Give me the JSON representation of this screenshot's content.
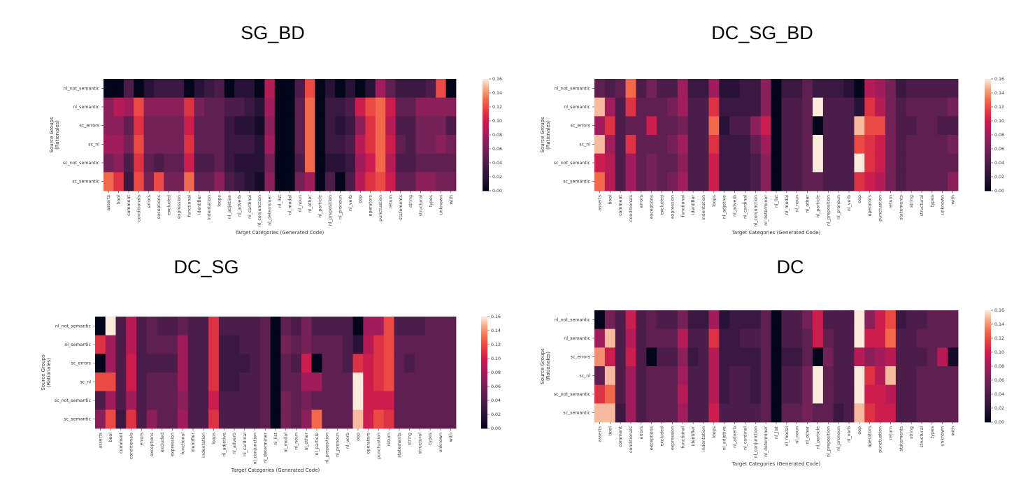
{
  "chart_data": [
    {
      "type": "heatmap",
      "title": "SG_BD",
      "xlabel": "Target Categories (Generated Code)",
      "ylabel": "Source Groups (Rationales)",
      "colorbar_range": [
        0,
        0.16
      ],
      "colorbar_ticks": [
        "0.00",
        "0.02",
        "0.04",
        "0.06",
        "0.08",
        "0.10",
        "0.12",
        "0.14",
        "0.16"
      ],
      "rows": [
        "nl_not_semantic",
        "nl_semantic",
        "sc_errors",
        "sc_nl",
        "sc_not_semantic",
        "sc_semantic"
      ],
      "columns": [
        "asserts",
        "bool",
        "comment",
        "conditionals",
        "errors",
        "exceptions",
        "excluded",
        "expression",
        "functional",
        "identifier",
        "indentation",
        "loops",
        "nl_adjetive",
        "nl_adverb",
        "nl_cardinal",
        "nl_conjunction",
        "nl_determiner",
        "nl_list",
        "nl_modal",
        "nl_noun",
        "nl_other",
        "nl_particle",
        "nl_preposition",
        "nl_pronoun",
        "nl_verb",
        "oop",
        "operators",
        "punctuation",
        "return",
        "statements",
        "string",
        "structural",
        "types",
        "unknown",
        "with"
      ],
      "values": [
        [
          0.0,
          0.0,
          0.04,
          0.0,
          0.02,
          0.03,
          0.03,
          0.03,
          0.0,
          0.02,
          0.03,
          0.04,
          0.0,
          0.02,
          0.02,
          0.0,
          0.09,
          0.0,
          0.0,
          0.04,
          0.12,
          0.0,
          0.02,
          0.0,
          0.02,
          0.0,
          0.02,
          0.08,
          0.05,
          0.03,
          0.03,
          0.03,
          0.04,
          0.12,
          0.0
        ],
        [
          0.07,
          0.09,
          0.08,
          0.12,
          0.07,
          0.07,
          0.07,
          0.07,
          0.11,
          0.06,
          0.05,
          0.05,
          0.04,
          0.04,
          0.03,
          0.02,
          0.08,
          0.0,
          0.0,
          0.05,
          0.13,
          0.0,
          0.03,
          0.03,
          0.04,
          0.1,
          0.12,
          0.13,
          0.1,
          0.05,
          0.05,
          0.07,
          0.07,
          0.07,
          0.07
        ],
        [
          0.07,
          0.07,
          0.05,
          0.11,
          0.06,
          0.06,
          0.06,
          0.06,
          0.1,
          0.05,
          0.05,
          0.05,
          0.03,
          0.02,
          0.02,
          0.01,
          0.07,
          0.0,
          0.0,
          0.05,
          0.13,
          0.0,
          0.03,
          0.02,
          0.03,
          0.07,
          0.11,
          0.13,
          0.09,
          0.04,
          0.04,
          0.06,
          0.06,
          0.06,
          0.04
        ],
        [
          0.08,
          0.08,
          0.06,
          0.12,
          0.06,
          0.06,
          0.06,
          0.06,
          0.11,
          0.05,
          0.05,
          0.05,
          0.03,
          0.03,
          0.03,
          0.02,
          0.08,
          0.0,
          0.0,
          0.05,
          0.13,
          0.0,
          0.03,
          0.03,
          0.04,
          0.09,
          0.11,
          0.13,
          0.1,
          0.05,
          0.04,
          0.06,
          0.06,
          0.07,
          0.06
        ],
        [
          0.06,
          0.07,
          0.04,
          0.11,
          0.05,
          0.04,
          0.05,
          0.05,
          0.1,
          0.04,
          0.04,
          0.05,
          0.03,
          0.02,
          0.02,
          0.02,
          0.06,
          0.0,
          0.0,
          0.04,
          0.13,
          0.0,
          0.02,
          0.02,
          0.03,
          0.08,
          0.1,
          0.13,
          0.09,
          0.04,
          0.04,
          0.05,
          0.05,
          0.05,
          0.05
        ],
        [
          0.13,
          0.11,
          0.03,
          0.12,
          0.06,
          0.12,
          0.06,
          0.06,
          0.13,
          0.05,
          0.05,
          0.07,
          0.04,
          0.03,
          0.02,
          0.01,
          0.07,
          0.0,
          0.0,
          0.06,
          0.08,
          0.0,
          0.04,
          0.0,
          0.04,
          0.09,
          0.11,
          0.12,
          0.1,
          0.05,
          0.05,
          0.07,
          0.07,
          0.06,
          0.06
        ]
      ]
    },
    {
      "type": "heatmap",
      "title": "DC_SG_BD",
      "xlabel": "Target Categories (Generated Code)",
      "ylabel": "Source Groups (Rationales)",
      "colorbar_range": [
        0,
        0.16
      ],
      "colorbar_ticks": [
        "0.00",
        "0.02",
        "0.04",
        "0.06",
        "0.08",
        "0.10",
        "0.12",
        "0.14",
        "0.16"
      ],
      "rows": [
        "nl_not_semantic",
        "nl_semantic",
        "sc_errors",
        "sc_nl",
        "sc_not_semantic",
        "sc_semantic"
      ],
      "columns": [
        "asserts",
        "bool",
        "comment",
        "conditionals",
        "errors",
        "exceptions",
        "excluded",
        "expression",
        "functional",
        "identifier",
        "indentation",
        "loops",
        "nl_adjetive",
        "nl_adverb",
        "nl_cardinal",
        "nl_conjunction",
        "nl_determiner",
        "nl_list",
        "nl_modal",
        "nl_noun",
        "nl_other",
        "nl_particle",
        "nl_preposition",
        "nl_pronoun",
        "nl_verb",
        "oop",
        "operators",
        "punctuation",
        "return",
        "statements",
        "string",
        "structural",
        "types",
        "unknown",
        "with"
      ],
      "values": [
        [
          0.05,
          0.04,
          0.05,
          0.13,
          0.04,
          0.06,
          0.04,
          0.04,
          0.08,
          0.03,
          0.03,
          0.08,
          0.02,
          0.02,
          0.03,
          0.03,
          0.07,
          0.0,
          0.03,
          0.03,
          0.05,
          0.03,
          0.03,
          0.03,
          0.02,
          0.0,
          0.09,
          0.08,
          0.06,
          0.03,
          0.04,
          0.04,
          0.04,
          0.04,
          0.04
        ],
        [
          0.15,
          0.08,
          0.04,
          0.11,
          0.05,
          0.05,
          0.05,
          0.06,
          0.08,
          0.04,
          0.04,
          0.11,
          0.03,
          0.03,
          0.03,
          0.03,
          0.07,
          0.0,
          0.04,
          0.04,
          0.05,
          0.16,
          0.04,
          0.04,
          0.04,
          0.02,
          0.11,
          0.09,
          0.06,
          0.04,
          0.05,
          0.05,
          0.05,
          0.05,
          0.06
        ],
        [
          0.08,
          0.11,
          0.04,
          0.05,
          0.05,
          0.1,
          0.05,
          0.05,
          0.06,
          0.04,
          0.04,
          0.13,
          0.02,
          0.04,
          0.04,
          0.07,
          0.1,
          0.0,
          0.04,
          0.04,
          0.05,
          0.0,
          0.04,
          0.04,
          0.04,
          0.15,
          0.12,
          0.12,
          0.06,
          0.04,
          0.04,
          0.05,
          0.05,
          0.04,
          0.04
        ],
        [
          0.15,
          0.08,
          0.04,
          0.11,
          0.05,
          0.05,
          0.05,
          0.06,
          0.08,
          0.04,
          0.04,
          0.11,
          0.03,
          0.03,
          0.03,
          0.05,
          0.08,
          0.0,
          0.04,
          0.04,
          0.05,
          0.16,
          0.04,
          0.04,
          0.04,
          0.12,
          0.11,
          0.1,
          0.06,
          0.04,
          0.05,
          0.05,
          0.05,
          0.05,
          0.06
        ],
        [
          0.1,
          0.09,
          0.04,
          0.08,
          0.05,
          0.06,
          0.05,
          0.05,
          0.07,
          0.04,
          0.04,
          0.1,
          0.03,
          0.03,
          0.03,
          0.04,
          0.07,
          0.0,
          0.04,
          0.04,
          0.05,
          0.16,
          0.04,
          0.04,
          0.04,
          0.16,
          0.11,
          0.1,
          0.06,
          0.04,
          0.05,
          0.05,
          0.05,
          0.05,
          0.05
        ],
        [
          0.13,
          0.09,
          0.04,
          0.08,
          0.05,
          0.06,
          0.05,
          0.06,
          0.08,
          0.04,
          0.04,
          0.1,
          0.03,
          0.03,
          0.03,
          0.04,
          0.07,
          0.0,
          0.04,
          0.04,
          0.05,
          0.05,
          0.04,
          0.04,
          0.04,
          0.11,
          0.1,
          0.09,
          0.06,
          0.04,
          0.05,
          0.05,
          0.05,
          0.05,
          0.07
        ]
      ]
    },
    {
      "type": "heatmap",
      "title": "DC_SG",
      "xlabel": "Target Categories (Generated Code)",
      "ylabel": "Source Groups (Rationales)",
      "colorbar_range": [
        0,
        0.16
      ],
      "colorbar_ticks": [
        "0.00",
        "0.02",
        "0.04",
        "0.06",
        "0.08",
        "0.10",
        "0.12",
        "0.14",
        "0.16"
      ],
      "rows": [
        "nl_not_semantic",
        "nl_semantic",
        "sc_errors",
        "sc_nl",
        "sc_not_semantic",
        "sc_semantic"
      ],
      "columns": [
        "asserts",
        "bool",
        "comment",
        "conditionals",
        "errors",
        "exceptions",
        "excluded",
        "expression",
        "functional",
        "identifier",
        "indentation",
        "loops",
        "nl_adjetive",
        "nl_adverb",
        "nl_cardinal",
        "nl_conjunction",
        "nl_determiner",
        "nl_list",
        "nl_modal",
        "nl_noun",
        "nl_other",
        "nl_particle",
        "nl_preposition",
        "nl_pronoun",
        "nl_verb",
        "oop",
        "operators",
        "punctuation",
        "return",
        "statements",
        "string",
        "structural",
        "types",
        "unknown",
        "with"
      ],
      "values": [
        [
          0.0,
          0.16,
          0.04,
          0.09,
          0.04,
          0.05,
          0.04,
          0.04,
          0.05,
          0.04,
          0.04,
          0.11,
          0.04,
          0.04,
          0.04,
          0.04,
          0.05,
          0.0,
          0.05,
          0.04,
          0.06,
          0.04,
          0.04,
          0.04,
          0.04,
          0.0,
          0.08,
          0.08,
          0.12,
          0.04,
          0.04,
          0.04,
          0.05,
          0.05,
          0.05
        ],
        [
          0.11,
          0.08,
          0.04,
          0.09,
          0.04,
          0.05,
          0.05,
          0.05,
          0.08,
          0.04,
          0.04,
          0.11,
          0.03,
          0.03,
          0.04,
          0.04,
          0.05,
          0.0,
          0.06,
          0.05,
          0.06,
          0.05,
          0.05,
          0.05,
          0.04,
          0.02,
          0.09,
          0.11,
          0.12,
          0.05,
          0.05,
          0.05,
          0.05,
          0.05,
          0.05
        ],
        [
          0.0,
          0.08,
          0.04,
          0.1,
          0.04,
          0.04,
          0.04,
          0.04,
          0.08,
          0.04,
          0.04,
          0.11,
          0.03,
          0.03,
          0.03,
          0.04,
          0.05,
          0.0,
          0.05,
          0.04,
          0.1,
          0.0,
          0.05,
          0.05,
          0.04,
          0.11,
          0.1,
          0.11,
          0.12,
          0.05,
          0.04,
          0.05,
          0.05,
          0.05,
          0.05
        ],
        [
          0.12,
          0.12,
          0.04,
          0.1,
          0.04,
          0.05,
          0.05,
          0.05,
          0.08,
          0.04,
          0.04,
          0.11,
          0.03,
          0.03,
          0.04,
          0.04,
          0.05,
          0.0,
          0.05,
          0.05,
          0.08,
          0.08,
          0.05,
          0.05,
          0.05,
          0.16,
          0.1,
          0.11,
          0.12,
          0.05,
          0.05,
          0.05,
          0.05,
          0.05,
          0.05
        ],
        [
          0.04,
          0.08,
          0.04,
          0.08,
          0.04,
          0.05,
          0.05,
          0.05,
          0.07,
          0.04,
          0.04,
          0.1,
          0.04,
          0.04,
          0.04,
          0.04,
          0.05,
          0.0,
          0.06,
          0.05,
          0.06,
          0.05,
          0.05,
          0.05,
          0.05,
          0.16,
          0.1,
          0.1,
          0.1,
          0.05,
          0.05,
          0.05,
          0.05,
          0.05,
          0.05
        ],
        [
          0.07,
          0.12,
          0.03,
          0.11,
          0.04,
          0.07,
          0.05,
          0.05,
          0.08,
          0.04,
          0.04,
          0.11,
          0.04,
          0.04,
          0.04,
          0.04,
          0.05,
          0.0,
          0.06,
          0.05,
          0.07,
          0.13,
          0.05,
          0.05,
          0.05,
          0.15,
          0.1,
          0.12,
          0.11,
          0.05,
          0.05,
          0.05,
          0.05,
          0.05,
          0.05
        ]
      ]
    },
    {
      "type": "heatmap",
      "title": "DC",
      "xlabel": "Target Categories (Generated Code)",
      "ylabel": "Source Groups (Rationales)",
      "colorbar_range": [
        0,
        0.16
      ],
      "colorbar_ticks": [
        "0.00",
        "0.02",
        "0.04",
        "0.06",
        "0.08",
        "0.10",
        "0.12",
        "0.14",
        "0.16"
      ],
      "rows": [
        "nl_not_semantic",
        "nl_semantic",
        "sc_errors",
        "sc_nl",
        "sc_not_semantic",
        "sc_semantic"
      ],
      "columns": [
        "asserts",
        "bool",
        "comment",
        "conditionals",
        "errors",
        "exceptions",
        "excluded",
        "expression",
        "functional",
        "identifier",
        "indentation",
        "loops",
        "nl_adjetive",
        "nl_adverb",
        "nl_cardinal",
        "nl_conjunction",
        "nl_determiner",
        "nl_list",
        "nl_modal",
        "nl_noun",
        "nl_other",
        "nl_particle",
        "nl_preposition",
        "nl_pronoun",
        "nl_verb",
        "oop",
        "operators",
        "punctuation",
        "return",
        "statements",
        "string",
        "structural",
        "types",
        "unknown",
        "with"
      ],
      "values": [
        [
          0.0,
          0.06,
          0.04,
          0.1,
          0.04,
          0.05,
          0.04,
          0.04,
          0.06,
          0.03,
          0.03,
          0.08,
          0.02,
          0.03,
          0.03,
          0.03,
          0.05,
          0.0,
          0.04,
          0.04,
          0.06,
          0.1,
          0.04,
          0.04,
          0.04,
          0.16,
          0.07,
          0.1,
          0.12,
          0.03,
          0.04,
          0.04,
          0.05,
          0.05,
          0.05
        ],
        [
          0.08,
          0.15,
          0.04,
          0.09,
          0.04,
          0.05,
          0.05,
          0.05,
          0.09,
          0.04,
          0.04,
          0.11,
          0.03,
          0.03,
          0.04,
          0.04,
          0.05,
          0.0,
          0.04,
          0.04,
          0.05,
          0.1,
          0.05,
          0.04,
          0.04,
          0.16,
          0.1,
          0.1,
          0.13,
          0.04,
          0.04,
          0.05,
          0.05,
          0.05,
          0.05
        ],
        [
          0.14,
          0.1,
          0.04,
          0.1,
          0.04,
          0.0,
          0.04,
          0.04,
          0.07,
          0.03,
          0.04,
          0.09,
          0.03,
          0.03,
          0.03,
          0.03,
          0.05,
          0.0,
          0.03,
          0.03,
          0.05,
          0.0,
          0.06,
          0.04,
          0.04,
          0.09,
          0.07,
          0.08,
          0.09,
          0.04,
          0.04,
          0.04,
          0.05,
          0.09,
          0.01
        ],
        [
          0.05,
          0.15,
          0.04,
          0.08,
          0.04,
          0.05,
          0.05,
          0.05,
          0.08,
          0.04,
          0.04,
          0.09,
          0.03,
          0.04,
          0.04,
          0.03,
          0.05,
          0.0,
          0.04,
          0.04,
          0.06,
          0.16,
          0.05,
          0.04,
          0.04,
          0.16,
          0.11,
          0.09,
          0.15,
          0.04,
          0.04,
          0.05,
          0.05,
          0.05,
          0.05
        ],
        [
          0.11,
          0.13,
          0.04,
          0.08,
          0.04,
          0.05,
          0.05,
          0.05,
          0.09,
          0.04,
          0.04,
          0.09,
          0.03,
          0.04,
          0.04,
          0.03,
          0.05,
          0.0,
          0.04,
          0.04,
          0.06,
          0.16,
          0.05,
          0.04,
          0.04,
          0.16,
          0.1,
          0.1,
          0.09,
          0.04,
          0.04,
          0.05,
          0.05,
          0.05,
          0.05
        ],
        [
          0.15,
          0.15,
          0.03,
          0.08,
          0.04,
          0.05,
          0.05,
          0.05,
          0.08,
          0.04,
          0.04,
          0.1,
          0.04,
          0.04,
          0.04,
          0.04,
          0.05,
          0.0,
          0.05,
          0.05,
          0.06,
          0.05,
          0.05,
          0.03,
          0.04,
          0.15,
          0.11,
          0.1,
          0.1,
          0.04,
          0.04,
          0.05,
          0.05,
          0.05,
          0.05
        ]
      ]
    }
  ]
}
